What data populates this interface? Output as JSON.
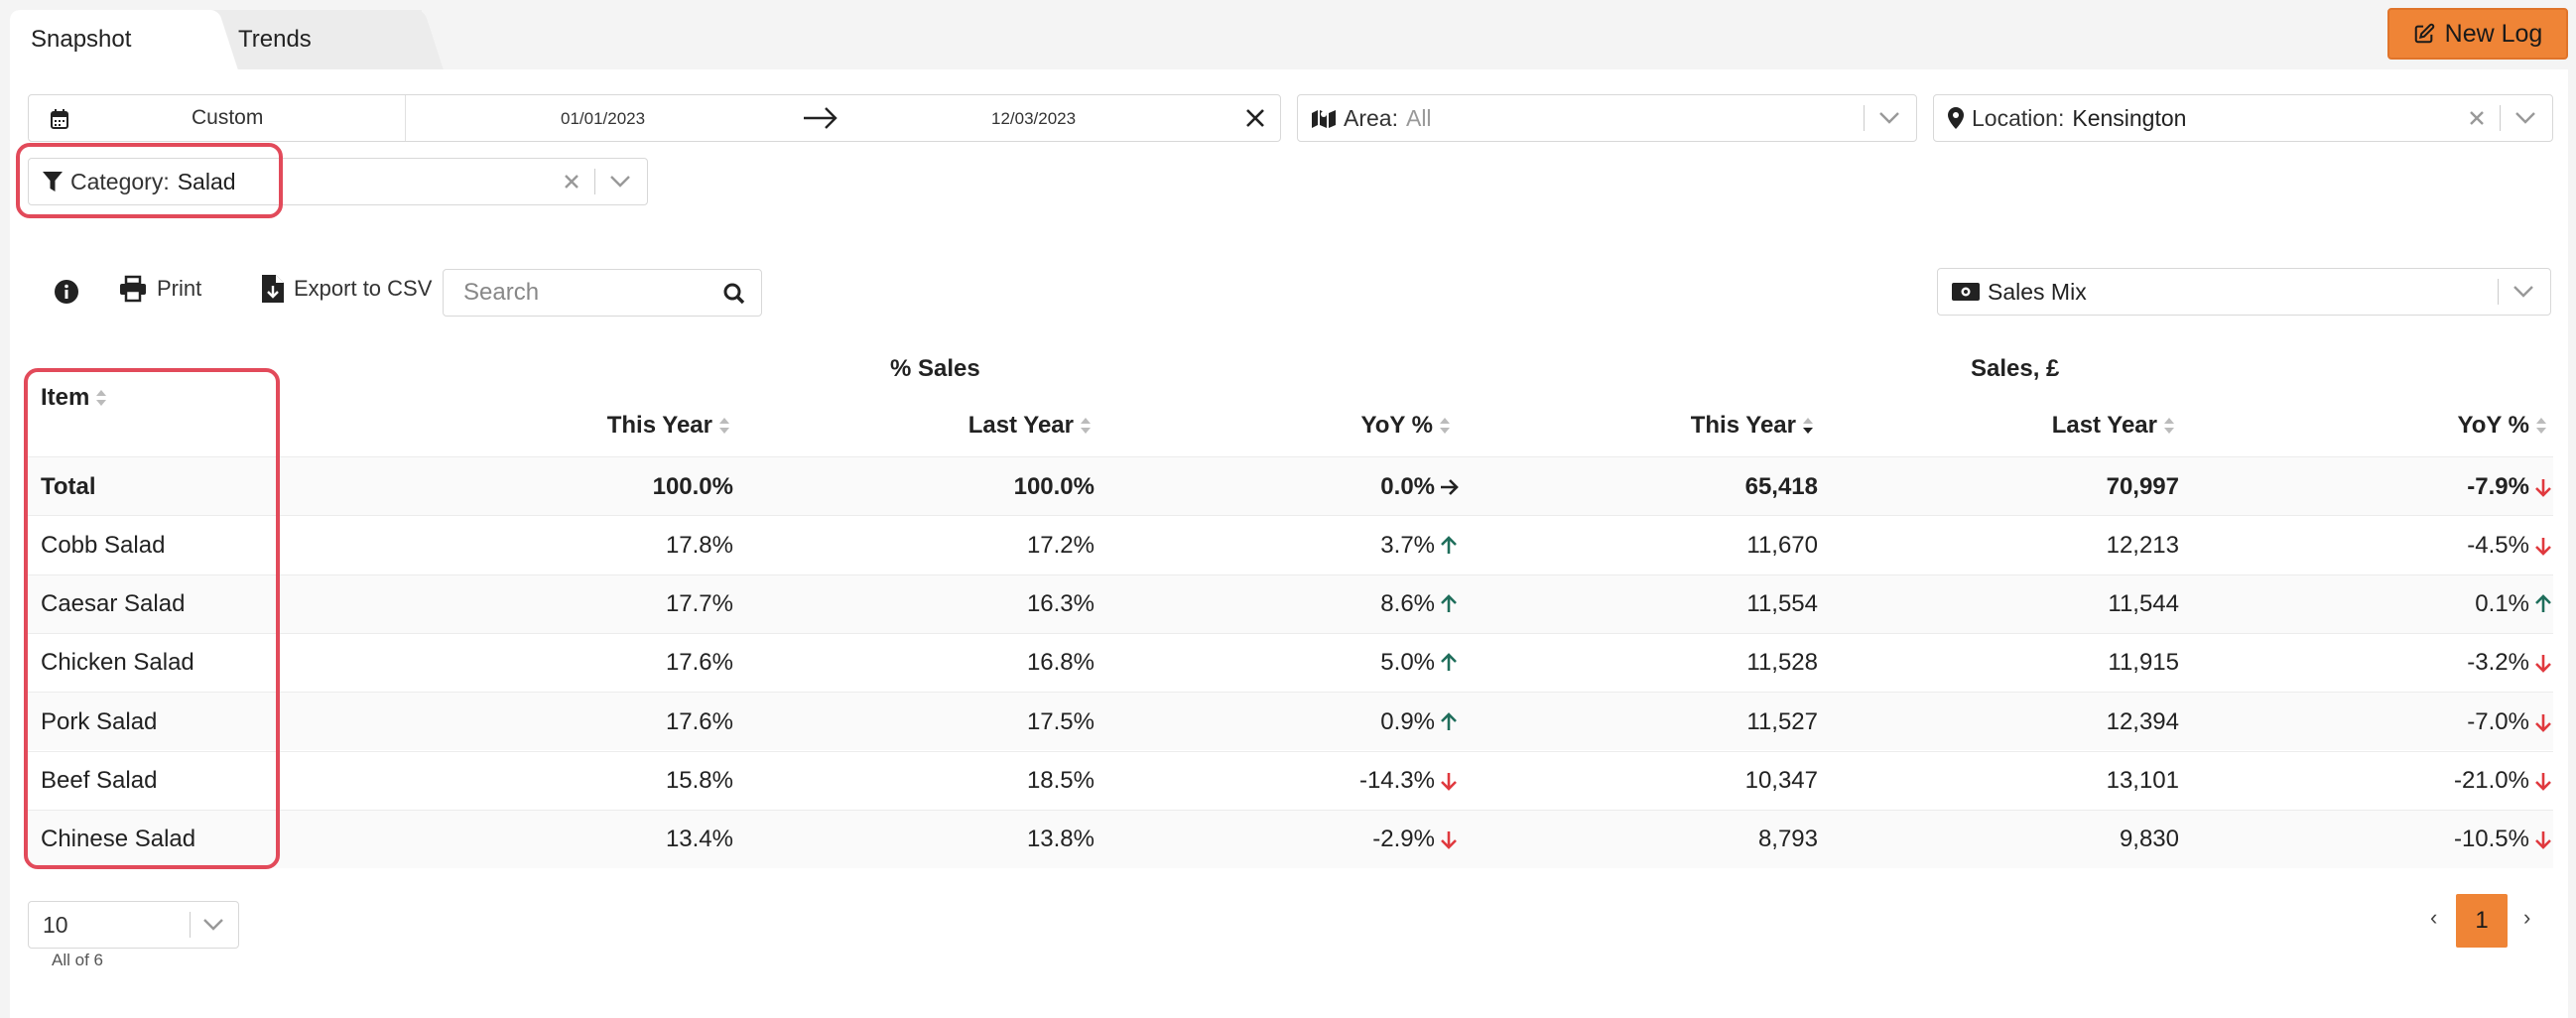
{
  "tabs": [
    {
      "label": "Snapshot",
      "active": true
    },
    {
      "label": "Trends",
      "active": false
    }
  ],
  "new_log_label": "New Log",
  "filters": {
    "date": {
      "preset": "Custom",
      "start": "01/01/2023",
      "end": "12/03/2023"
    },
    "area": {
      "label": "Area:",
      "value": "All"
    },
    "location": {
      "label": "Location:",
      "value": "Kensington"
    },
    "category": {
      "label": "Category:",
      "value": "Salad"
    }
  },
  "toolbar": {
    "print_label": "Print",
    "export_label": "Export to CSV",
    "search_placeholder": "Search",
    "view_select": "Sales Mix"
  },
  "table": {
    "group_headers": {
      "pct_sales": "% Sales",
      "sales": "Sales, £"
    },
    "columns": {
      "item": "Item",
      "pct_this_year": "This Year",
      "pct_last_year": "Last Year",
      "pct_yoy": "YoY %",
      "sales_this_year": "This Year",
      "sales_last_year": "Last Year",
      "sales_yoy": "YoY %"
    },
    "rows": [
      {
        "item": "Total",
        "pct_ty": "100.0%",
        "pct_ly": "100.0%",
        "pct_yoy": "0.0%",
        "pct_trend": "flat",
        "sales_ty": "65,418",
        "sales_ly": "70,997",
        "sales_yoy": "-7.9%",
        "sales_trend": "down"
      },
      {
        "item": "Cobb Salad",
        "pct_ty": "17.8%",
        "pct_ly": "17.2%",
        "pct_yoy": "3.7%",
        "pct_trend": "up",
        "sales_ty": "11,670",
        "sales_ly": "12,213",
        "sales_yoy": "-4.5%",
        "sales_trend": "down"
      },
      {
        "item": "Caesar Salad",
        "pct_ty": "17.7%",
        "pct_ly": "16.3%",
        "pct_yoy": "8.6%",
        "pct_trend": "up",
        "sales_ty": "11,554",
        "sales_ly": "11,544",
        "sales_yoy": "0.1%",
        "sales_trend": "up"
      },
      {
        "item": "Chicken Salad",
        "pct_ty": "17.6%",
        "pct_ly": "16.8%",
        "pct_yoy": "5.0%",
        "pct_trend": "up",
        "sales_ty": "11,528",
        "sales_ly": "11,915",
        "sales_yoy": "-3.2%",
        "sales_trend": "down"
      },
      {
        "item": "Pork Salad",
        "pct_ty": "17.6%",
        "pct_ly": "17.5%",
        "pct_yoy": "0.9%",
        "pct_trend": "up",
        "sales_ty": "11,527",
        "sales_ly": "12,394",
        "sales_yoy": "-7.0%",
        "sales_trend": "down"
      },
      {
        "item": "Beef Salad",
        "pct_ty": "15.8%",
        "pct_ly": "18.5%",
        "pct_yoy": "-14.3%",
        "pct_trend": "down",
        "sales_ty": "10,347",
        "sales_ly": "13,101",
        "sales_yoy": "-21.0%",
        "sales_trend": "down"
      },
      {
        "item": "Chinese Salad",
        "pct_ty": "13.4%",
        "pct_ly": "13.8%",
        "pct_yoy": "-2.9%",
        "pct_trend": "down",
        "sales_ty": "8,793",
        "sales_ly": "9,830",
        "sales_yoy": "-10.5%",
        "sales_trend": "down"
      }
    ]
  },
  "pagination": {
    "page_size": "10",
    "summary": "All of 6",
    "current_page": "1",
    "prev": "‹",
    "next": "›"
  },
  "colors": {
    "accent": "#ef8436",
    "up": "#1f6e5b",
    "down": "#e0393e",
    "highlight": "#e24a5a"
  }
}
